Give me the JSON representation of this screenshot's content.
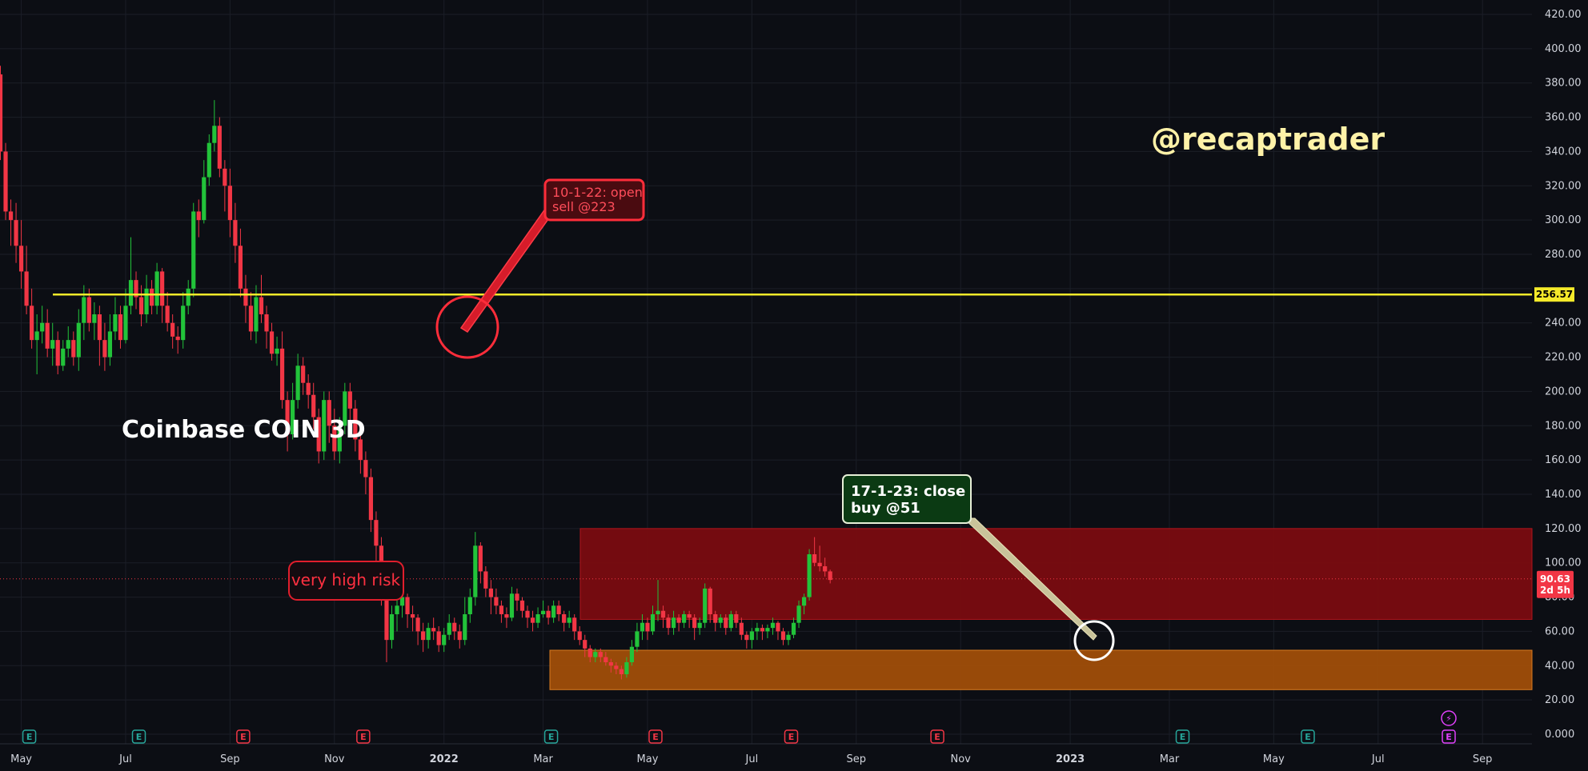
{
  "chart_data": {
    "type": "candlestick",
    "title": "Coinbase COIN 3D",
    "watermark": "@recaptrader",
    "ylim": [
      0,
      420
    ],
    "y_ticks": [
      "0.000",
      "20.00",
      "40.00",
      "60.00",
      "80.00",
      "100.00",
      "120.00",
      "140.00",
      "160.00",
      "180.00",
      "200.00",
      "220.00",
      "240.00",
      "260.00",
      "280.00",
      "300.00",
      "320.00",
      "340.00",
      "360.00",
      "380.00",
      "400.00",
      "420.00"
    ],
    "x_ticks": [
      {
        "label": "May",
        "i": 4
      },
      {
        "label": "Jul",
        "i": 24
      },
      {
        "label": "Sep",
        "i": 44
      },
      {
        "label": "Nov",
        "i": 64
      },
      {
        "label": "2022",
        "i": 85,
        "bold": true
      },
      {
        "label": "Mar",
        "i": 104
      },
      {
        "label": "May",
        "i": 124
      },
      {
        "label": "Jul",
        "i": 144
      },
      {
        "label": "Sep",
        "i": 164
      },
      {
        "label": "Nov",
        "i": 184
      },
      {
        "label": "2023",
        "i": 205,
        "bold": true
      },
      {
        "label": "Mar",
        "i": 224
      },
      {
        "label": "May",
        "i": 244
      },
      {
        "label": "Jul",
        "i": 264
      },
      {
        "label": "Sep",
        "i": 284
      }
    ],
    "candles": [
      [
        385,
        340,
        390,
        335
      ],
      [
        340,
        305,
        345,
        300
      ],
      [
        305,
        300,
        312,
        285
      ],
      [
        300,
        285,
        310,
        275
      ],
      [
        285,
        270,
        300,
        260
      ],
      [
        270,
        250,
        285,
        245
      ],
      [
        250,
        230,
        260,
        225
      ],
      [
        230,
        235,
        245,
        210
      ],
      [
        235,
        240,
        250,
        228
      ],
      [
        240,
        225,
        248,
        220
      ],
      [
        225,
        230,
        240,
        215
      ],
      [
        230,
        215,
        235,
        210
      ],
      [
        215,
        225,
        230,
        212
      ],
      [
        225,
        230,
        238,
        220
      ],
      [
        230,
        220,
        235,
        215
      ],
      [
        220,
        240,
        248,
        212
      ],
      [
        240,
        255,
        262,
        230
      ],
      [
        255,
        240,
        260,
        235
      ],
      [
        240,
        245,
        252,
        230
      ],
      [
        245,
        230,
        250,
        215
      ],
      [
        230,
        220,
        240,
        212
      ],
      [
        220,
        235,
        245,
        215
      ],
      [
        235,
        245,
        255,
        230
      ],
      [
        245,
        230,
        250,
        225
      ],
      [
        230,
        250,
        260,
        228
      ],
      [
        250,
        265,
        290,
        245
      ],
      [
        265,
        255,
        270,
        248
      ],
      [
        255,
        245,
        262,
        238
      ],
      [
        245,
        260,
        268,
        240
      ],
      [
        260,
        250,
        265,
        245
      ],
      [
        250,
        270,
        275,
        245
      ],
      [
        270,
        250,
        272,
        240
      ],
      [
        250,
        240,
        258,
        235
      ],
      [
        240,
        232,
        245,
        225
      ],
      [
        232,
        230,
        238,
        222
      ],
      [
        230,
        250,
        258,
        225
      ],
      [
        250,
        260,
        265,
        245
      ],
      [
        260,
        305,
        310,
        255
      ],
      [
        305,
        300,
        312,
        290
      ],
      [
        300,
        325,
        335,
        298
      ],
      [
        325,
        345,
        350,
        320
      ],
      [
        345,
        355,
        370,
        340
      ],
      [
        355,
        330,
        360,
        325
      ],
      [
        330,
        320,
        335,
        305
      ],
      [
        320,
        300,
        330,
        290
      ],
      [
        300,
        285,
        310,
        275
      ],
      [
        285,
        260,
        295,
        255
      ],
      [
        260,
        250,
        268,
        240
      ],
      [
        250,
        235,
        258,
        230
      ],
      [
        235,
        255,
        262,
        228
      ],
      [
        255,
        245,
        268,
        240
      ],
      [
        245,
        235,
        250,
        225
      ],
      [
        235,
        222,
        240,
        218
      ],
      [
        222,
        225,
        232,
        215
      ],
      [
        225,
        195,
        235,
        190
      ],
      [
        195,
        175,
        200,
        165
      ],
      [
        175,
        195,
        205,
        172
      ],
      [
        195,
        215,
        222,
        190
      ],
      [
        215,
        205,
        220,
        198
      ],
      [
        205,
        198,
        210,
        190
      ],
      [
        198,
        185,
        205,
        178
      ],
      [
        185,
        165,
        190,
        158
      ],
      [
        165,
        195,
        200,
        160
      ],
      [
        195,
        180,
        200,
        170
      ],
      [
        180,
        165,
        190,
        160
      ],
      [
        165,
        180,
        185,
        158
      ],
      [
        180,
        200,
        205,
        175
      ],
      [
        200,
        190,
        205,
        182
      ],
      [
        190,
        172,
        195,
        165
      ],
      [
        172,
        160,
        178,
        152
      ],
      [
        160,
        150,
        165,
        140
      ],
      [
        150,
        125,
        155,
        118
      ],
      [
        125,
        110,
        130,
        100
      ],
      [
        110,
        80,
        115,
        75
      ],
      [
        80,
        55,
        85,
        42
      ],
      [
        55,
        70,
        75,
        50
      ],
      [
        70,
        75,
        80,
        60
      ],
      [
        75,
        80,
        85,
        68
      ],
      [
        80,
        70,
        82,
        62
      ],
      [
        70,
        68,
        75,
        60
      ],
      [
        68,
        60,
        70,
        52
      ],
      [
        60,
        55,
        65,
        48
      ],
      [
        55,
        62,
        65,
        50
      ],
      [
        62,
        60,
        68,
        55
      ],
      [
        60,
        52,
        63,
        48
      ],
      [
        52,
        58,
        62,
        48
      ],
      [
        58,
        65,
        70,
        55
      ],
      [
        65,
        60,
        68,
        55
      ],
      [
        60,
        55,
        64,
        50
      ],
      [
        55,
        70,
        80,
        52
      ],
      [
        70,
        80,
        85,
        65
      ],
      [
        80,
        110,
        118,
        75
      ],
      [
        110,
        95,
        112,
        88
      ],
      [
        95,
        85,
        98,
        80
      ],
      [
        85,
        80,
        90,
        70
      ],
      [
        80,
        75,
        85,
        70
      ],
      [
        75,
        70,
        78,
        65
      ],
      [
        70,
        68,
        74,
        62
      ],
      [
        68,
        82,
        86,
        66
      ],
      [
        82,
        78,
        85,
        72
      ],
      [
        78,
        72,
        80,
        68
      ],
      [
        72,
        68,
        75,
        62
      ],
      [
        68,
        65,
        72,
        60
      ],
      [
        65,
        70,
        74,
        62
      ],
      [
        70,
        72,
        78,
        68
      ],
      [
        72,
        68,
        75,
        64
      ],
      [
        68,
        75,
        78,
        65
      ],
      [
        75,
        70,
        78,
        66
      ],
      [
        70,
        65,
        72,
        60
      ],
      [
        65,
        68,
        72,
        62
      ],
      [
        68,
        60,
        70,
        55
      ],
      [
        60,
        55,
        63,
        52
      ],
      [
        55,
        50,
        58,
        45
      ],
      [
        50,
        45,
        52,
        42
      ],
      [
        45,
        48,
        50,
        42
      ],
      [
        48,
        45,
        50,
        42
      ],
      [
        45,
        42,
        48,
        40
      ],
      [
        42,
        40,
        44,
        36
      ],
      [
        40,
        38,
        42,
        35
      ],
      [
        38,
        35,
        40,
        32
      ],
      [
        35,
        42,
        45,
        33
      ],
      [
        42,
        51,
        55,
        40
      ],
      [
        51,
        60,
        65,
        48
      ],
      [
        60,
        65,
        70,
        55
      ],
      [
        65,
        60,
        68,
        55
      ],
      [
        60,
        70,
        75,
        58
      ],
      [
        70,
        72,
        90,
        66
      ],
      [
        72,
        68,
        75,
        62
      ],
      [
        68,
        62,
        70,
        58
      ],
      [
        62,
        68,
        72,
        58
      ],
      [
        68,
        65,
        70,
        60
      ],
      [
        65,
        70,
        72,
        62
      ],
      [
        70,
        68,
        72,
        62
      ],
      [
        68,
        62,
        70,
        55
      ],
      [
        62,
        65,
        68,
        58
      ],
      [
        65,
        85,
        88,
        62
      ],
      [
        85,
        70,
        86,
        65
      ],
      [
        70,
        65,
        72,
        60
      ],
      [
        65,
        68,
        70,
        62
      ],
      [
        68,
        62,
        70,
        58
      ],
      [
        62,
        70,
        72,
        60
      ],
      [
        70,
        65,
        72,
        62
      ],
      [
        65,
        58,
        68,
        55
      ],
      [
        58,
        55,
        60,
        50
      ],
      [
        55,
        60,
        62,
        50
      ],
      [
        60,
        62,
        65,
        55
      ],
      [
        62,
        60,
        64,
        55
      ],
      [
        60,
        62,
        64,
        56
      ],
      [
        62,
        65,
        68,
        58
      ],
      [
        65,
        60,
        66,
        55
      ],
      [
        60,
        55,
        62,
        52
      ],
      [
        55,
        58,
        60,
        52
      ],
      [
        58,
        65,
        68,
        56
      ],
      [
        65,
        75,
        78,
        62
      ],
      [
        75,
        80,
        82,
        70
      ],
      [
        80,
        105,
        108,
        78
      ],
      [
        105,
        100,
        115,
        98
      ],
      [
        100,
        98,
        110,
        95
      ],
      [
        98,
        95,
        103,
        92
      ],
      [
        95,
        90,
        96,
        88
      ]
    ],
    "annotations": [
      {
        "label": "10-1-22: open\nsell @223",
        "kind": "sell"
      },
      {
        "label": "17-1-23: close\nbuy @51",
        "kind": "buy"
      },
      {
        "label": "very high risk",
        "kind": "risk"
      }
    ],
    "hline": {
      "value": 256.57,
      "label": "256.57",
      "color": "#f5ea2a"
    },
    "last_price": {
      "value": 90.63,
      "label": "90.63",
      "countdown": "2d 5h",
      "color": "#f23645"
    },
    "zones": [
      {
        "name": "red-zone",
        "from": 67,
        "to": 120,
        "color": "#7a0c10"
      },
      {
        "name": "orange-zone",
        "from": 26,
        "to": 49,
        "color": "#a04e08"
      }
    ],
    "events": [
      {
        "i": 4,
        "glyph": "E",
        "color": "#26a69a"
      },
      {
        "i": 25,
        "glyph": "E",
        "color": "#26a69a"
      },
      {
        "i": 45,
        "glyph": "E",
        "color": "#f23645"
      },
      {
        "i": 68,
        "glyph": "E",
        "color": "#f23645"
      },
      {
        "i": 104,
        "glyph": "E",
        "color": "#26a69a"
      },
      {
        "i": 124,
        "glyph": "E",
        "color": "#f23645"
      },
      {
        "i": 150,
        "glyph": "E",
        "color": "#f23645"
      },
      {
        "i": 178,
        "glyph": "E",
        "color": "#f23645"
      },
      {
        "i": 225,
        "glyph": "E",
        "color": "#26a69a"
      },
      {
        "i": 249,
        "glyph": "E",
        "color": "#26a69a"
      },
      {
        "i": 276,
        "glyph": "E",
        "color": "#e040fb"
      },
      {
        "i": 276,
        "glyph": "⚡",
        "color": "#e040fb",
        "upper": true
      }
    ],
    "colors": {
      "up": "#22c33a",
      "down": "#f23645",
      "background": "#0c0e14",
      "grid": "#1b1e27"
    }
  }
}
